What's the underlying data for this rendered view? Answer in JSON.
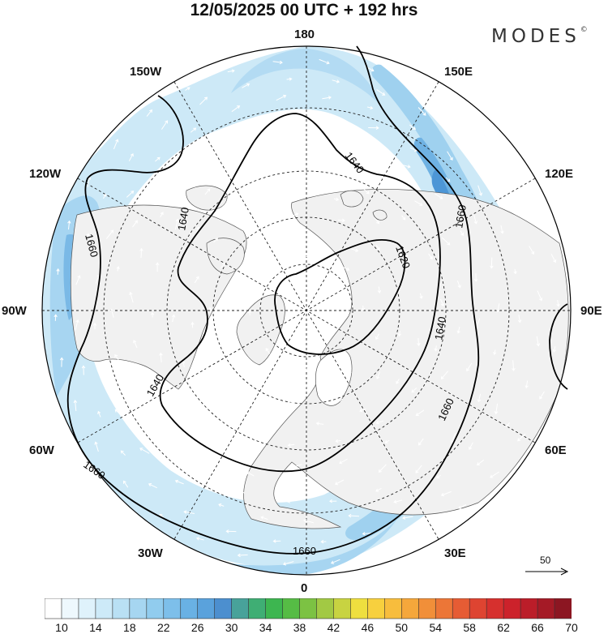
{
  "title": "12/05/2025  00 UTC  + 192 hrs",
  "brand": "MODES",
  "brand_mark": "©",
  "longitude_labels": {
    "top": "180",
    "bottom": "0",
    "left": "90W",
    "right": "90E",
    "upper_left": "150W",
    "upper_left_2": "120W",
    "lower_left": "60W",
    "lower_left_2": "30W",
    "upper_right": "150E",
    "upper_right_2": "120E",
    "lower_right": "60E",
    "lower_right_2": "30E"
  },
  "contour_labels": [
    "1640",
    "1620",
    "1660",
    "1640",
    "1640",
    "1660",
    "1660",
    "1660",
    "1640"
  ],
  "reference_vector": {
    "value": "50"
  },
  "colorbar": {
    "tick_labels": [
      "10",
      "14",
      "18",
      "22",
      "26",
      "30",
      "34",
      "38",
      "42",
      "46",
      "50",
      "54",
      "58",
      "62",
      "66",
      "70"
    ],
    "colors": [
      "#ffffff",
      "#eef8fd",
      "#dff2fb",
      "#cdeaf8",
      "#b9e0f4",
      "#a6d6f1",
      "#91ccee",
      "#7dbfea",
      "#69b1e4",
      "#5aa2dc",
      "#4c8fcf",
      "#48a29a",
      "#3fae74",
      "#3db650",
      "#56bc45",
      "#7cc243",
      "#a2c944",
      "#c8d341",
      "#eedf3f",
      "#f7d03e",
      "#f7bd3d",
      "#f5a73b",
      "#f18f39",
      "#ec7637",
      "#e65c34",
      "#de4431",
      "#d6302e",
      "#cc222b",
      "#bb1d29",
      "#a51a26",
      "#8c1622"
    ]
  },
  "map_colors": {
    "land": "#f1f1f1",
    "ocean": "#ffffff",
    "jet_light": "#c9e6f6",
    "jet_mid": "#9fd1ef",
    "jet_strong": "#6fb2e3",
    "jet_core": "#4d96d6"
  }
}
